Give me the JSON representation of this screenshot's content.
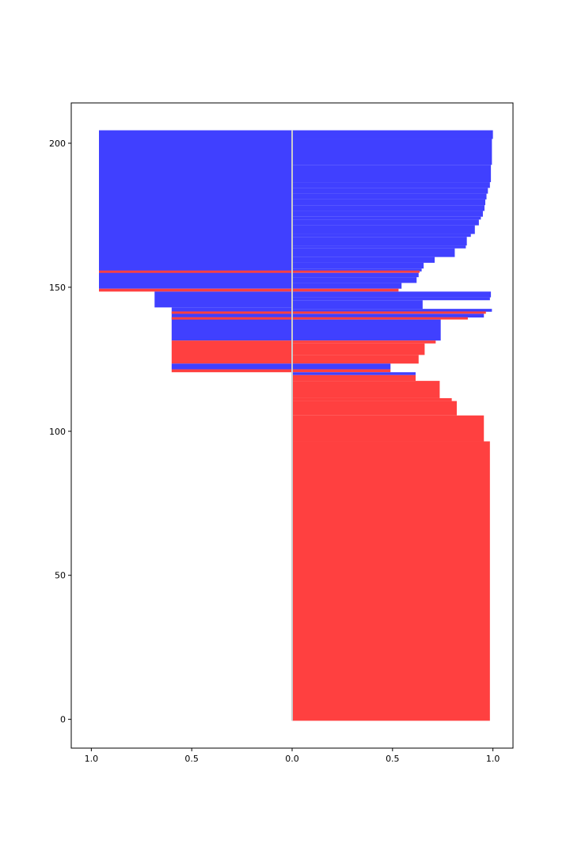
{
  "colors": {
    "neg": "#4040ff",
    "pos": "#ff4040",
    "zeroline": "#cccccc",
    "axis": "#000000",
    "background": "#ffffff"
  },
  "chart_data": {
    "type": "bar",
    "orientation": "horizontal",
    "title": "",
    "xlabel": "",
    "ylabel": "",
    "xlim": [
      -1.1,
      1.1
    ],
    "ylim": [
      -10,
      214
    ],
    "xticks": [
      {
        "value": -1.0,
        "label": "1.0"
      },
      {
        "value": -0.5,
        "label": "0.5"
      },
      {
        "value": 0.0,
        "label": "0.0"
      },
      {
        "value": 0.5,
        "label": "0.5"
      },
      {
        "value": 1.0,
        "label": "1.0"
      }
    ],
    "yticks": [
      {
        "value": 0,
        "label": "0"
      },
      {
        "value": 50,
        "label": "50"
      },
      {
        "value": 100,
        "label": "100"
      },
      {
        "value": 150,
        "label": "150"
      },
      {
        "value": 200,
        "label": "200"
      }
    ],
    "grid": false,
    "legend": false,
    "bars": [
      {
        "y0": 149.5,
        "y1": 204.5,
        "x0": -0.962,
        "x1": 0,
        "color": "neg"
      },
      {
        "y0": 155.0,
        "y1": 155.8,
        "x0": -0.962,
        "x1": 0,
        "color": "pos"
      },
      {
        "y0": 148.5,
        "y1": 149.5,
        "x0": -0.962,
        "x1": 0,
        "color": "pos"
      },
      {
        "y0": 143.0,
        "y1": 148.5,
        "x0": -0.685,
        "x1": 0,
        "color": "neg"
      },
      {
        "y0": 131.5,
        "y1": 143.0,
        "x0": -0.6,
        "x1": 0,
        "color": "neg"
      },
      {
        "y0": 140.8,
        "y1": 141.6,
        "x0": -0.6,
        "x1": 0,
        "color": "pos"
      },
      {
        "y0": 138.8,
        "y1": 139.6,
        "x0": -0.6,
        "x1": 0,
        "color": "pos"
      },
      {
        "y0": 123.5,
        "y1": 131.5,
        "x0": -0.6,
        "x1": 0,
        "color": "pos"
      },
      {
        "y0": 121.5,
        "y1": 123.5,
        "x0": -0.6,
        "x1": 0,
        "color": "neg"
      },
      {
        "y0": 120.5,
        "y1": 121.5,
        "x0": -0.6,
        "x1": 0,
        "color": "pos"
      },
      {
        "y0": 201.5,
        "y1": 204.5,
        "x0": 0,
        "x1": 1.0,
        "color": "neg"
      },
      {
        "y0": 192.5,
        "y1": 201.5,
        "x0": 0,
        "x1": 0.995,
        "color": "neg"
      },
      {
        "y0": 186.5,
        "y1": 192.5,
        "x0": 0,
        "x1": 0.99,
        "color": "neg"
      },
      {
        "y0": 184.5,
        "y1": 186.5,
        "x0": 0,
        "x1": 0.985,
        "color": "neg"
      },
      {
        "y0": 182.5,
        "y1": 184.5,
        "x0": 0,
        "x1": 0.975,
        "color": "neg"
      },
      {
        "y0": 180.5,
        "y1": 182.5,
        "x0": 0,
        "x1": 0.968,
        "color": "neg"
      },
      {
        "y0": 178.5,
        "y1": 180.5,
        "x0": 0,
        "x1": 0.962,
        "color": "neg"
      },
      {
        "y0": 176.5,
        "y1": 178.5,
        "x0": 0,
        "x1": 0.958,
        "color": "neg"
      },
      {
        "y0": 174.5,
        "y1": 176.5,
        "x0": 0,
        "x1": 0.95,
        "color": "neg"
      },
      {
        "y0": 173.5,
        "y1": 174.5,
        "x0": 0,
        "x1": 0.94,
        "color": "neg"
      },
      {
        "y0": 171.5,
        "y1": 173.5,
        "x0": 0,
        "x1": 0.93,
        "color": "neg"
      },
      {
        "y0": 168.5,
        "y1": 171.5,
        "x0": 0,
        "x1": 0.91,
        "color": "neg"
      },
      {
        "y0": 167.5,
        "y1": 168.5,
        "x0": 0,
        "x1": 0.89,
        "color": "neg"
      },
      {
        "y0": 164.5,
        "y1": 167.5,
        "x0": 0,
        "x1": 0.87,
        "color": "neg"
      },
      {
        "y0": 163.5,
        "y1": 164.5,
        "x0": 0,
        "x1": 0.865,
        "color": "neg"
      },
      {
        "y0": 160.5,
        "y1": 163.5,
        "x0": 0,
        "x1": 0.81,
        "color": "neg"
      },
      {
        "y0": 158.5,
        "y1": 160.5,
        "x0": 0,
        "x1": 0.71,
        "color": "neg"
      },
      {
        "y0": 156.5,
        "y1": 158.5,
        "x0": 0,
        "x1": 0.655,
        "color": "neg"
      },
      {
        "y0": 155.5,
        "y1": 156.5,
        "x0": 0,
        "x1": 0.645,
        "color": "neg"
      },
      {
        "y0": 155.0,
        "y1": 155.8,
        "x0": 0,
        "x1": 0.635,
        "color": "pos"
      },
      {
        "y0": 153.5,
        "y1": 155.0,
        "x0": 0,
        "x1": 0.63,
        "color": "neg"
      },
      {
        "y0": 151.5,
        "y1": 153.5,
        "x0": 0,
        "x1": 0.62,
        "color": "neg"
      },
      {
        "y0": 149.5,
        "y1": 151.5,
        "x0": 0,
        "x1": 0.545,
        "color": "neg"
      },
      {
        "y0": 148.5,
        "y1": 149.5,
        "x0": 0,
        "x1": 0.53,
        "color": "pos"
      },
      {
        "y0": 146.5,
        "y1": 148.5,
        "x0": 0,
        "x1": 0.99,
        "color": "neg"
      },
      {
        "y0": 145.5,
        "y1": 146.5,
        "x0": 0,
        "x1": 0.985,
        "color": "neg"
      },
      {
        "y0": 142.5,
        "y1": 145.5,
        "x0": 0,
        "x1": 0.65,
        "color": "neg"
      },
      {
        "y0": 141.5,
        "y1": 142.5,
        "x0": 0,
        "x1": 0.995,
        "color": "neg"
      },
      {
        "y0": 140.8,
        "y1": 141.6,
        "x0": 0,
        "x1": 0.965,
        "color": "pos"
      },
      {
        "y0": 139.5,
        "y1": 140.8,
        "x0": 0,
        "x1": 0.955,
        "color": "neg"
      },
      {
        "y0": 138.8,
        "y1": 139.6,
        "x0": 0,
        "x1": 0.875,
        "color": "pos"
      },
      {
        "y0": 131.5,
        "y1": 138.8,
        "x0": 0,
        "x1": 0.74,
        "color": "neg"
      },
      {
        "y0": 130.5,
        "y1": 131.5,
        "x0": 0,
        "x1": 0.715,
        "color": "pos"
      },
      {
        "y0": 126.5,
        "y1": 130.5,
        "x0": 0,
        "x1": 0.66,
        "color": "pos"
      },
      {
        "y0": 123.5,
        "y1": 126.5,
        "x0": 0,
        "x1": 0.63,
        "color": "pos"
      },
      {
        "y0": 121.5,
        "y1": 123.5,
        "x0": 0,
        "x1": 0.49,
        "color": "neg"
      },
      {
        "y0": 120.5,
        "y1": 121.5,
        "x0": 0,
        "x1": 0.49,
        "color": "pos"
      },
      {
        "y0": 119.5,
        "y1": 120.5,
        "x0": 0,
        "x1": 0.615,
        "color": "neg"
      },
      {
        "y0": 117.5,
        "y1": 119.5,
        "x0": 0,
        "x1": 0.615,
        "color": "pos"
      },
      {
        "y0": 111.5,
        "y1": 117.5,
        "x0": 0,
        "x1": 0.735,
        "color": "pos"
      },
      {
        "y0": 110.5,
        "y1": 111.5,
        "x0": 0,
        "x1": 0.795,
        "color": "pos"
      },
      {
        "y0": 105.5,
        "y1": 110.5,
        "x0": 0,
        "x1": 0.82,
        "color": "pos"
      },
      {
        "y0": 96.5,
        "y1": 105.5,
        "x0": 0,
        "x1": 0.955,
        "color": "pos"
      },
      {
        "y0": -0.5,
        "y1": 96.5,
        "x0": 0,
        "x1": 0.985,
        "color": "pos"
      }
    ]
  }
}
